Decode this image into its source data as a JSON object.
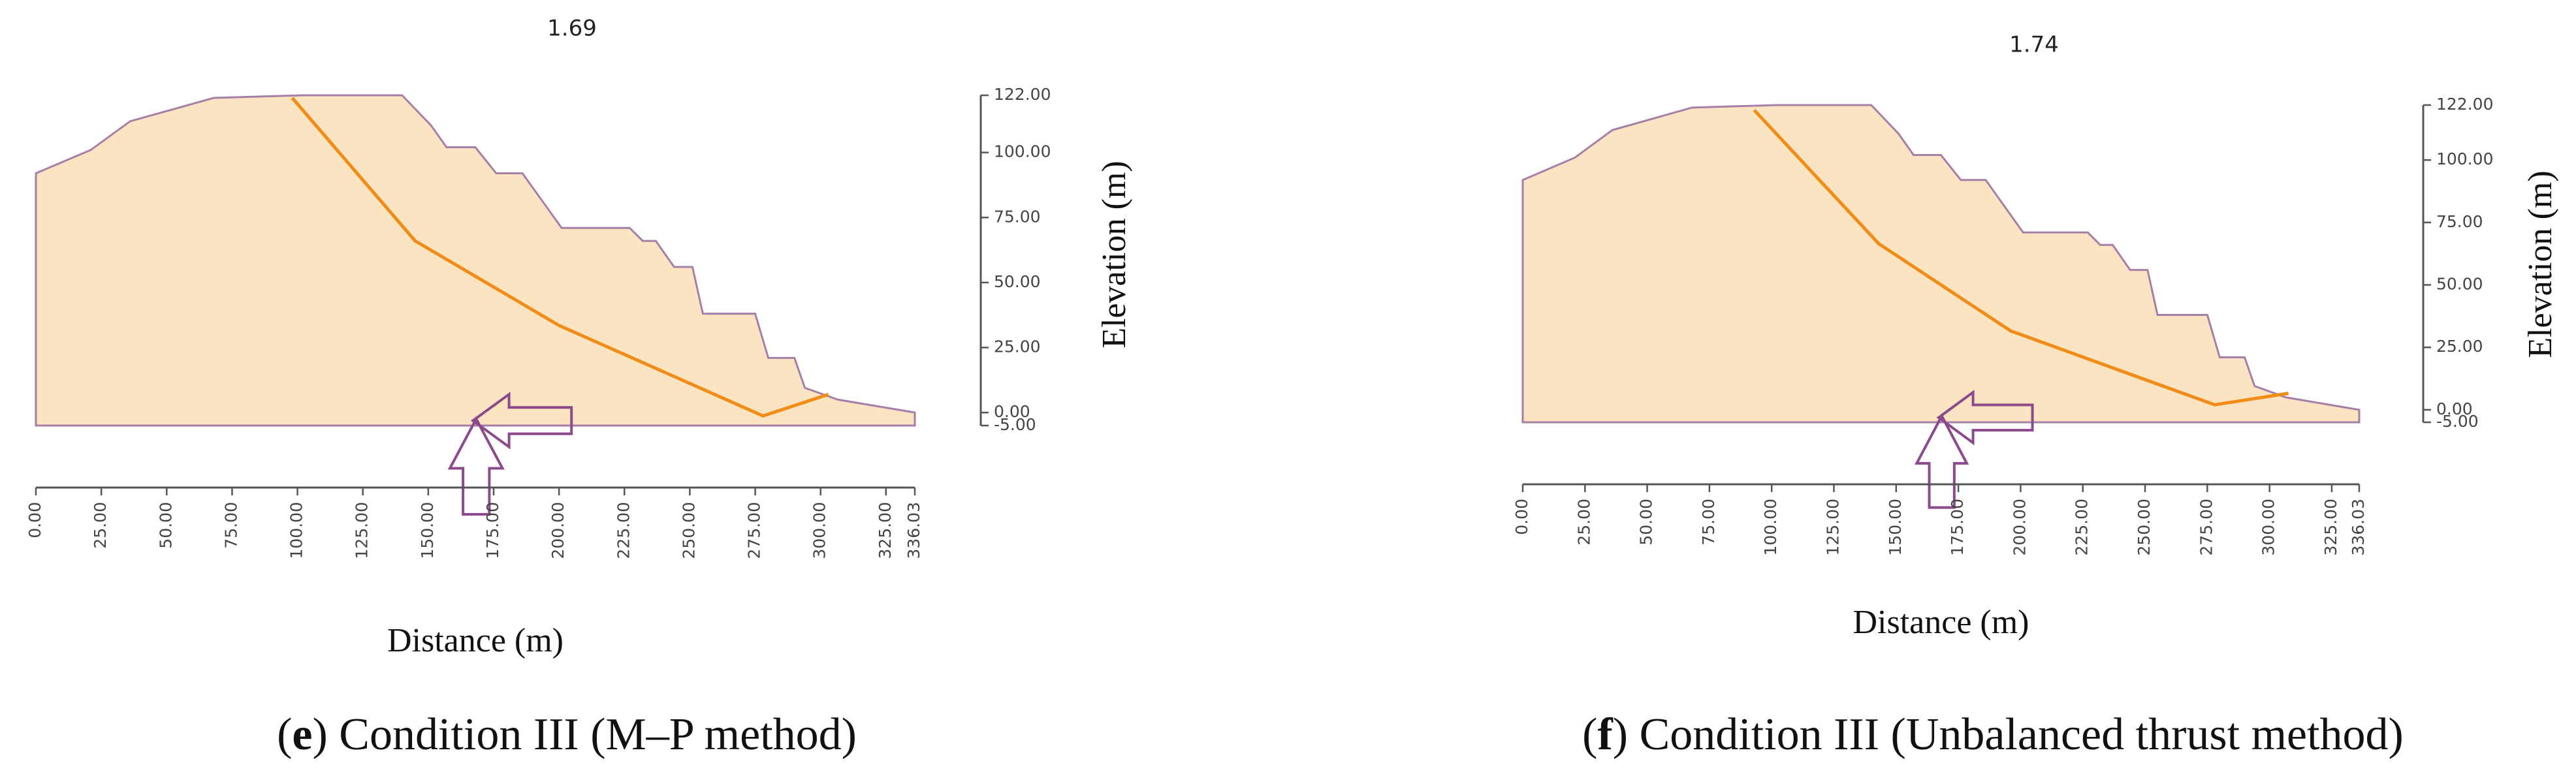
{
  "chart_data": [
    {
      "type": "area",
      "title": "1.69",
      "caption": [
        "(",
        "e",
        ") Condition III (M–P method)"
      ],
      "x_label": "Distance (m)",
      "y_label": "Elevation (m)",
      "xlim": [
        0,
        336.03
      ],
      "ylim": [
        -5,
        122
      ],
      "xticks": [
        {
          "value": 0,
          "label": "0.00"
        },
        {
          "value": 25,
          "label": "25.00"
        },
        {
          "value": 50,
          "label": "50.00"
        },
        {
          "value": 75,
          "label": "75.00"
        },
        {
          "value": 100,
          "label": "100.00"
        },
        {
          "value": 125,
          "label": "125.00"
        },
        {
          "value": 150,
          "label": "150.00"
        },
        {
          "value": 175,
          "label": "175.00"
        },
        {
          "value": 200,
          "label": "200.00"
        },
        {
          "value": 225,
          "label": "225.00"
        },
        {
          "value": 250,
          "label": "250.00"
        },
        {
          "value": 275,
          "label": "275.00"
        },
        {
          "value": 300,
          "label": "300.00"
        },
        {
          "value": 325,
          "label": "325.00"
        },
        {
          "value": 336.03,
          "label": "336.03"
        }
      ],
      "yticks": [
        {
          "value": -5,
          "label": "-5.00"
        },
        {
          "value": 0,
          "label": "0.00"
        },
        {
          "value": 25,
          "label": "25.00"
        },
        {
          "value": 50,
          "label": "50.00"
        },
        {
          "value": 75,
          "label": "75.00"
        },
        {
          "value": 100,
          "label": "100.00"
        },
        {
          "value": 122,
          "label": "122.00"
        }
      ],
      "series": [
        {
          "type": "area",
          "color": "#a57fa8",
          "fill": "#fae4c2",
          "x": [
            0,
            21,
            36,
            68,
            102,
            140,
            151,
            157,
            168,
            176,
            186,
            201,
            227,
            232,
            237,
            244,
            251,
            255,
            275,
            280,
            290,
            294,
            306.5,
            336.03
          ],
          "values": [
            92,
            101,
            112,
            121,
            122,
            122,
            110.5,
            102,
            102,
            92,
            92,
            71,
            71,
            66,
            66,
            56,
            56,
            38,
            38,
            21,
            21,
            9.5,
            5,
            0
          ]
        },
        {
          "type": "line",
          "color": "#f28c18",
          "x": [
            98,
            145,
            200,
            278,
            303
          ],
          "values": [
            121,
            66,
            33.5,
            -1.3,
            7
          ]
        }
      ]
    },
    {
      "type": "area",
      "title": "1.74",
      "caption": [
        "(",
        "f",
        ") Condition III (Unbalanced thrust method)"
      ],
      "x_label": "Distance (m)",
      "y_label": "Elevation (m)",
      "xlim": [
        0,
        336.03
      ],
      "ylim": [
        -5,
        122
      ],
      "xticks": [
        {
          "value": 0,
          "label": "0.00"
        },
        {
          "value": 25,
          "label": "25.00"
        },
        {
          "value": 50,
          "label": "50.00"
        },
        {
          "value": 75,
          "label": "75.00"
        },
        {
          "value": 100,
          "label": "100.00"
        },
        {
          "value": 125,
          "label": "125.00"
        },
        {
          "value": 150,
          "label": "150.00"
        },
        {
          "value": 175,
          "label": "175.00"
        },
        {
          "value": 200,
          "label": "200.00"
        },
        {
          "value": 225,
          "label": "225.00"
        },
        {
          "value": 250,
          "label": "250.00"
        },
        {
          "value": 275,
          "label": "275.00"
        },
        {
          "value": 300,
          "label": "300.00"
        },
        {
          "value": 325,
          "label": "325.00"
        },
        {
          "value": 336.03,
          "label": "336.03"
        }
      ],
      "yticks": [
        {
          "value": -5,
          "label": "-5.00"
        },
        {
          "value": 0,
          "label": "0.00"
        },
        {
          "value": 25,
          "label": "25.00"
        },
        {
          "value": 50,
          "label": "50.00"
        },
        {
          "value": 75,
          "label": "75.00"
        },
        {
          "value": 100,
          "label": "100.00"
        },
        {
          "value": 122,
          "label": "122.00"
        }
      ],
      "series": [
        {
          "type": "area",
          "color": "#a57fa8",
          "fill": "#fae4c2",
          "x": [
            0,
            21,
            36,
            68,
            102,
            140,
            151,
            157,
            168,
            176,
            186,
            201,
            227,
            232,
            237,
            244,
            251,
            255,
            275,
            280,
            290,
            294,
            306.5,
            336.03
          ],
          "values": [
            92,
            101,
            112,
            121,
            122,
            122,
            110.5,
            102,
            102,
            92,
            92,
            71,
            71,
            66,
            66,
            56,
            56,
            38,
            38,
            21,
            21,
            9.5,
            5,
            0
          ]
        },
        {
          "type": "line",
          "color": "#f28c18",
          "x": [
            93,
            143,
            196,
            278,
            307.6
          ],
          "values": [
            120,
            66.5,
            31.6,
            2,
            6.6
          ]
        }
      ]
    }
  ]
}
